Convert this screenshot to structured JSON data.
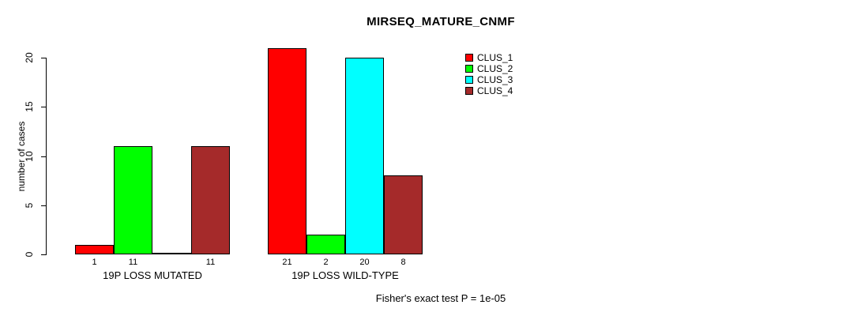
{
  "chart_data": {
    "type": "bar",
    "title": "MIRSEQ_MATURE_CNMF",
    "ylabel": "number of cases",
    "xlabel": "",
    "ylim": [
      0,
      20
    ],
    "yticks": [
      0,
      5,
      10,
      15,
      20
    ],
    "grid": false,
    "legend_position": "top-right-inside",
    "categories": [
      "19P LOSS MUTATED",
      "19P LOSS WILD-TYPE"
    ],
    "series": [
      {
        "name": "CLUS_1",
        "color": "#FF0000",
        "values": [
          1,
          21
        ]
      },
      {
        "name": "CLUS_2",
        "color": "#00FF00",
        "values": [
          11,
          2
        ]
      },
      {
        "name": "CLUS_3",
        "color": "#00FFFF",
        "values": [
          0,
          20
        ]
      },
      {
        "name": "CLUS_4",
        "color": "#A52A2A",
        "values": [
          11,
          8
        ]
      }
    ],
    "bar_labels": [
      [
        "1",
        "11",
        "",
        "11"
      ],
      [
        "21",
        "2",
        "20",
        "8"
      ]
    ],
    "annotation": "Fisher's exact test P = 1e-05",
    "bar_border_color": "#000000"
  }
}
